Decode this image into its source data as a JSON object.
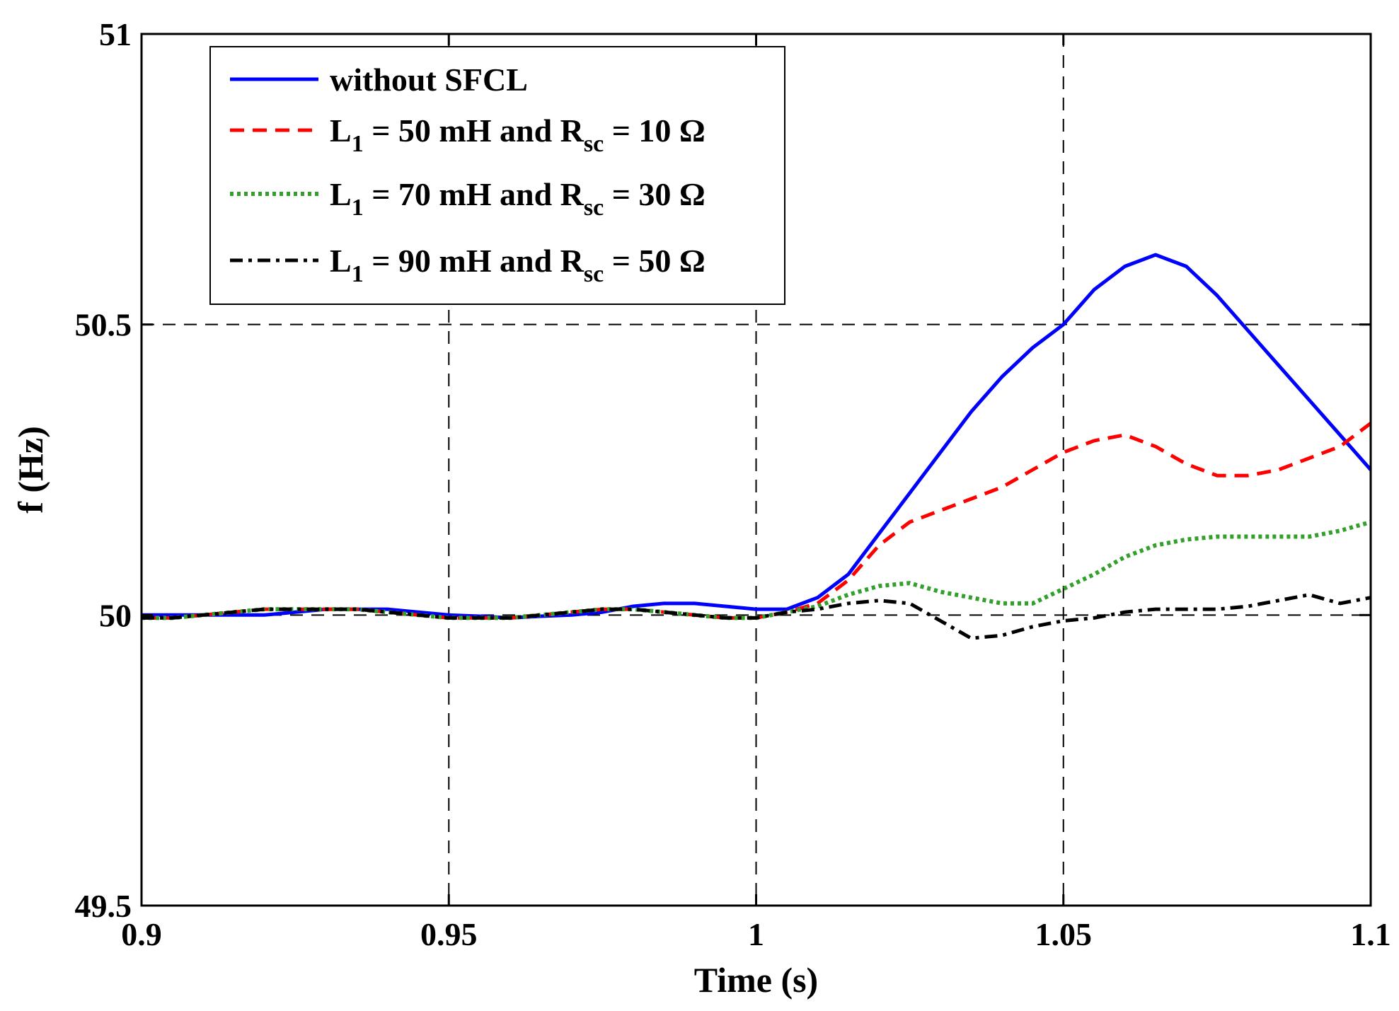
{
  "chart_data": {
    "type": "line",
    "title": "",
    "xlabel": "Time (s)",
    "ylabel": "f (Hz)",
    "xlim": [
      0.9,
      1.1
    ],
    "ylim": [
      49.5,
      51
    ],
    "xticks": [
      0.9,
      0.95,
      1,
      1.05,
      1.1
    ],
    "xtick_labels": [
      "0.9",
      "0.95",
      "1",
      "1.05",
      "1.1"
    ],
    "yticks": [
      49.5,
      50,
      50.5,
      51
    ],
    "ytick_labels": [
      "49.5",
      "50",
      "50.5",
      "51"
    ],
    "grid": true,
    "legend_position": "top-left",
    "series": [
      {
        "name": "without SFCL",
        "legend": {
          "pre": "without SFCL",
          "sub1": "",
          "mid": "",
          "sub2": "",
          "post": ""
        },
        "color": "#0000ff",
        "style": "solid",
        "x": [
          0.9,
          0.905,
          0.91,
          0.915,
          0.92,
          0.925,
          0.93,
          0.935,
          0.94,
          0.945,
          0.95,
          0.955,
          0.96,
          0.965,
          0.97,
          0.975,
          0.98,
          0.985,
          0.99,
          0.995,
          1.0,
          1.005,
          1.01,
          1.015,
          1.02,
          1.025,
          1.03,
          1.035,
          1.04,
          1.045,
          1.05,
          1.055,
          1.06,
          1.065,
          1.07,
          1.075,
          1.08,
          1.085,
          1.09,
          1.095,
          1.1
        ],
        "y": [
          50.0,
          50.0,
          50.0,
          50.0,
          50.0,
          50.005,
          50.01,
          50.01,
          50.01,
          50.005,
          50.0,
          49.998,
          49.995,
          49.998,
          50.0,
          50.005,
          50.015,
          50.02,
          50.02,
          50.015,
          50.01,
          50.01,
          50.03,
          50.07,
          50.14,
          50.21,
          50.28,
          50.35,
          50.41,
          50.46,
          50.5,
          50.56,
          50.6,
          50.62,
          50.6,
          50.55,
          50.49,
          50.43,
          50.37,
          50.31,
          50.25
        ]
      },
      {
        "name": "L1 = 50 mH and Rsc = 10 Ω",
        "legend": {
          "pre": "L",
          "sub1": "1",
          "mid": " = 50 mH and R",
          "sub2": "sc",
          "post": " = 10 Ω"
        },
        "color": "#ff0000",
        "style": "dashed",
        "x": [
          0.9,
          0.905,
          0.91,
          0.915,
          0.92,
          0.925,
          0.93,
          0.935,
          0.94,
          0.945,
          0.95,
          0.955,
          0.96,
          0.965,
          0.97,
          0.975,
          0.98,
          0.985,
          0.99,
          0.995,
          1.0,
          1.005,
          1.01,
          1.015,
          1.02,
          1.025,
          1.03,
          1.035,
          1.04,
          1.045,
          1.05,
          1.055,
          1.06,
          1.065,
          1.07,
          1.075,
          1.08,
          1.085,
          1.09,
          1.095,
          1.1
        ],
        "y": [
          49.995,
          49.995,
          50.0,
          50.005,
          50.01,
          50.01,
          50.01,
          50.01,
          50.005,
          50.0,
          49.995,
          49.995,
          49.995,
          50.0,
          50.005,
          50.01,
          50.01,
          50.005,
          50.0,
          49.995,
          49.995,
          50.005,
          50.02,
          50.06,
          50.12,
          50.16,
          50.18,
          50.2,
          50.22,
          50.25,
          50.28,
          50.3,
          50.31,
          50.29,
          50.26,
          50.24,
          50.24,
          50.25,
          50.27,
          50.29,
          50.33
        ]
      },
      {
        "name": "L1 = 70 mH and Rsc = 30 Ω",
        "legend": {
          "pre": "L",
          "sub1": "1",
          "mid": " = 70 mH and R",
          "sub2": "sc",
          "post": " = 30 Ω"
        },
        "color": "#33a02c",
        "style": "dotted",
        "x": [
          0.9,
          0.905,
          0.91,
          0.915,
          0.92,
          0.925,
          0.93,
          0.935,
          0.94,
          0.945,
          0.95,
          0.955,
          0.96,
          0.965,
          0.97,
          0.975,
          0.98,
          0.985,
          0.99,
          0.995,
          1.0,
          1.005,
          1.01,
          1.015,
          1.02,
          1.025,
          1.03,
          1.035,
          1.04,
          1.045,
          1.05,
          1.055,
          1.06,
          1.065,
          1.07,
          1.075,
          1.08,
          1.085,
          1.09,
          1.095,
          1.1
        ],
        "y": [
          49.995,
          49.995,
          50.0,
          50.005,
          50.01,
          50.01,
          50.01,
          50.01,
          50.005,
          50.0,
          49.995,
          49.995,
          49.995,
          50.0,
          50.005,
          50.01,
          50.01,
          50.005,
          50.0,
          49.995,
          49.995,
          50.005,
          50.015,
          50.035,
          50.05,
          50.055,
          50.04,
          50.03,
          50.02,
          50.02,
          50.045,
          50.07,
          50.1,
          50.12,
          50.13,
          50.135,
          50.135,
          50.135,
          50.135,
          50.145,
          50.16
        ]
      },
      {
        "name": "L1 = 90 mH and Rsc = 50 Ω",
        "legend": {
          "pre": "L",
          "sub1": "1",
          "mid": " = 90 mH and R",
          "sub2": "sc",
          "post": " = 50 Ω"
        },
        "color": "#000000",
        "style": "dashdot",
        "x": [
          0.9,
          0.905,
          0.91,
          0.915,
          0.92,
          0.925,
          0.93,
          0.935,
          0.94,
          0.945,
          0.95,
          0.955,
          0.96,
          0.965,
          0.97,
          0.975,
          0.98,
          0.985,
          0.99,
          0.995,
          1.0,
          1.005,
          1.01,
          1.015,
          1.02,
          1.025,
          1.03,
          1.035,
          1.04,
          1.045,
          1.05,
          1.055,
          1.06,
          1.065,
          1.07,
          1.075,
          1.08,
          1.085,
          1.09,
          1.095,
          1.1
        ],
        "y": [
          49.995,
          49.995,
          50.0,
          50.005,
          50.01,
          50.01,
          50.01,
          50.01,
          50.005,
          50.0,
          49.995,
          49.995,
          49.995,
          50.0,
          50.005,
          50.01,
          50.01,
          50.005,
          50.0,
          49.995,
          49.995,
          50.005,
          50.01,
          50.02,
          50.025,
          50.02,
          49.99,
          49.96,
          49.965,
          49.98,
          49.99,
          49.995,
          50.005,
          50.01,
          50.01,
          50.01,
          50.015,
          50.025,
          50.035,
          50.02,
          50.03
        ]
      }
    ]
  }
}
